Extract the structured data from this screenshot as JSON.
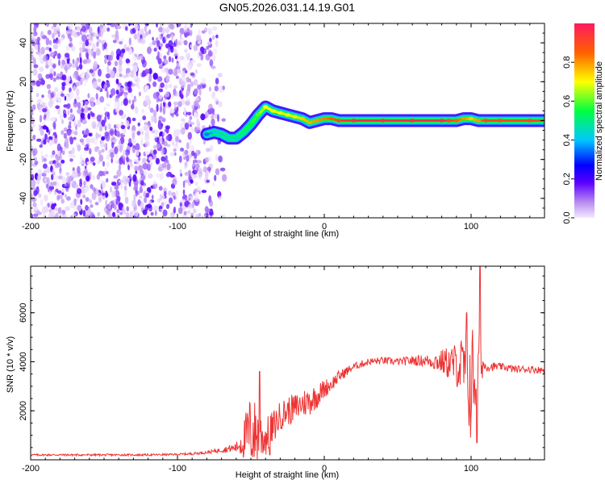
{
  "title": "GN05.2026.031.14.19.G01",
  "chart_data": [
    {
      "type": "heatmap",
      "name": "spectrogram",
      "xlabel": "Height of straight line (km)",
      "ylabel": "Frequency (Hz)",
      "xlim": [
        -200,
        150
      ],
      "ylim": [
        -50,
        50
      ],
      "xticks": [
        -200,
        -100,
        0,
        100
      ],
      "yticks": [
        -40,
        -20,
        0,
        20,
        40
      ],
      "colorbar": {
        "label": "Normalized spectral amplitude",
        "range": [
          0.0,
          1.0
        ],
        "ticks": [
          0.0,
          0.2,
          0.4,
          0.6,
          0.8
        ],
        "tick_labels": [
          "0.0",
          "0.2",
          "0.4",
          "0.6",
          "0.8"
        ]
      },
      "noise_region_km": [
        -200,
        -68
      ],
      "noise_amplitude_range": [
        0.0,
        0.2
      ],
      "signal_track": {
        "x": [
          -80,
          -75,
          -70,
          -65,
          -60,
          -55,
          -50,
          -45,
          -40,
          -35,
          -30,
          -25,
          -20,
          -15,
          -10,
          -5,
          0,
          5,
          10,
          20,
          40,
          60,
          80,
          85,
          90,
          95,
          100,
          105,
          110,
          120,
          140,
          150
        ],
        "freq": [
          -7,
          -6,
          -7,
          -9,
          -9,
          -6,
          -2,
          3,
          7,
          5,
          4,
          3,
          2,
          1,
          -1,
          0,
          1,
          1,
          0,
          0,
          0,
          0,
          0,
          0,
          0,
          1,
          1,
          0,
          0,
          0,
          0,
          0
        ],
        "amplitude": [
          0.35,
          0.4,
          0.45,
          0.45,
          0.45,
          0.5,
          0.55,
          0.6,
          0.7,
          0.7,
          0.7,
          0.7,
          0.72,
          0.75,
          0.78,
          0.8,
          0.82,
          0.85,
          0.9,
          0.95,
          0.95,
          0.95,
          0.95,
          0.9,
          0.85,
          0.8,
          0.75,
          0.8,
          0.9,
          0.9,
          0.9,
          0.9
        ]
      }
    },
    {
      "type": "line",
      "name": "snr",
      "xlabel": "Height of straight line (km)",
      "ylabel": "SNR (10 * v/v)",
      "xlim": [
        -200,
        150
      ],
      "ylim": [
        0,
        7900
      ],
      "xticks": [
        -200,
        -100,
        0,
        100
      ],
      "yticks": [
        2000,
        4000,
        6000
      ],
      "color": "#ee3333",
      "x": [
        -200,
        -180,
        -160,
        -140,
        -120,
        -100,
        -90,
        -80,
        -70,
        -60,
        -55,
        -50,
        -45,
        -40,
        -35,
        -30,
        -25,
        -20,
        -15,
        -10,
        -5,
        0,
        5,
        10,
        15,
        20,
        25,
        30,
        40,
        50,
        60,
        70,
        80,
        90,
        95,
        100,
        102,
        105,
        108,
        110,
        120,
        130,
        140,
        150
      ],
      "y": [
        200,
        200,
        200,
        200,
        200,
        220,
        250,
        300,
        400,
        500,
        800,
        1200,
        1000,
        900,
        1300,
        1800,
        2000,
        2100,
        2300,
        2400,
        2600,
        2900,
        3100,
        3400,
        3600,
        3800,
        3900,
        4000,
        4050,
        4000,
        4050,
        4050,
        4000,
        3900,
        3700,
        3000,
        3500,
        4000,
        3900,
        3800,
        3800,
        3700,
        3700,
        3650
      ],
      "noise_amplitude": [
        40,
        40,
        40,
        40,
        40,
        40,
        50,
        60,
        100,
        200,
        800,
        1600,
        1200,
        800,
        700,
        600,
        600,
        600,
        600,
        600,
        500,
        400,
        300,
        250,
        200,
        150,
        150,
        150,
        150,
        150,
        200,
        250,
        500,
        900,
        1500,
        2500,
        2200,
        1500,
        500,
        200,
        150,
        150,
        150,
        150
      ],
      "spikes": [
        {
          "x": 97,
          "y": 6000
        },
        {
          "x": 106,
          "y": 7900
        },
        {
          "x": 104,
          "y": 700
        },
        {
          "x": -44,
          "y": 3600
        },
        {
          "x": -37,
          "y": 200
        }
      ]
    }
  ]
}
